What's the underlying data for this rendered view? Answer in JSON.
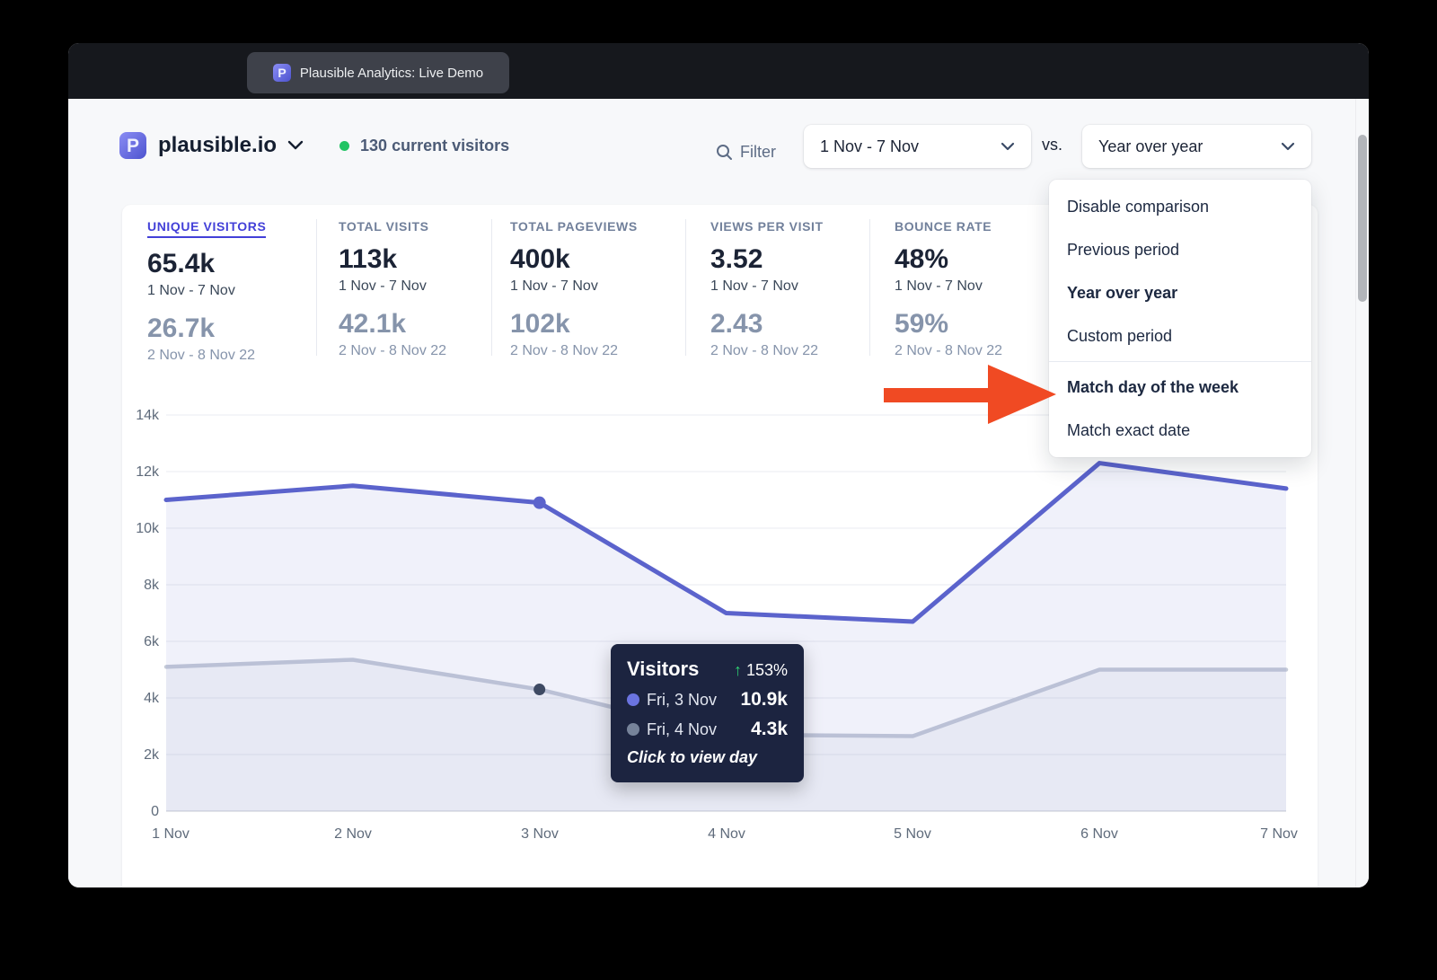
{
  "browser": {
    "tab_title": "Plausible Analytics: Live Demo"
  },
  "header": {
    "site_name": "plausible.io",
    "current_visitors": "130 current visitors",
    "filter_label": "Filter",
    "date_range_value": "1 Nov - 7 Nov",
    "vs_label": "vs.",
    "comparison_value": "Year over year"
  },
  "comparison_menu": {
    "items": [
      {
        "label": "Disable comparison",
        "bold": false
      },
      {
        "label": "Previous period",
        "bold": false
      },
      {
        "label": "Year over year",
        "bold": true
      },
      {
        "label": "Custom period",
        "bold": false
      },
      {
        "label": "Match day of the week",
        "bold": true
      },
      {
        "label": "Match exact date",
        "bold": false
      }
    ]
  },
  "stats": [
    {
      "label": "UNIQUE VISITORS",
      "value": "65.4k",
      "period": "1 Nov - 7 Nov",
      "comparison_value": "26.7k",
      "comparison_period": "2 Nov - 8 Nov 22"
    },
    {
      "label": "TOTAL VISITS",
      "value": "113k",
      "period": "1 Nov - 7 Nov",
      "comparison_value": "42.1k",
      "comparison_period": "2 Nov - 8 Nov 22"
    },
    {
      "label": "TOTAL PAGEVIEWS",
      "value": "400k",
      "period": "1 Nov - 7 Nov",
      "comparison_value": "102k",
      "comparison_period": "2 Nov - 8 Nov 22"
    },
    {
      "label": "VIEWS PER VISIT",
      "value": "3.52",
      "period": "1 Nov - 7 Nov",
      "comparison_value": "2.43",
      "comparison_period": "2 Nov - 8 Nov 22"
    },
    {
      "label": "BOUNCE RATE",
      "value": "48%",
      "period": "1 Nov - 7 Nov",
      "comparison_value": "59%",
      "comparison_period": "2 Nov - 8 Nov 22"
    }
  ],
  "tooltip": {
    "title": "Visitors",
    "change_arrow": "↑",
    "change": "153%",
    "rows": [
      {
        "label": "Fri, 3 Nov",
        "value": "10.9k",
        "color": "#6b74e0"
      },
      {
        "label": "Fri, 4 Nov",
        "value": "4.3k",
        "color": "#76839a"
      }
    ],
    "footer": "Click to view day"
  },
  "chart_data": {
    "type": "line",
    "x": [
      "1 Nov",
      "2 Nov",
      "3 Nov",
      "4 Nov",
      "5 Nov",
      "6 Nov",
      "7 Nov"
    ],
    "series": [
      {
        "name": "Visitors 1 Nov - 7 Nov",
        "color": "#5b63cc",
        "fill": "rgba(91,99,204,0.09)",
        "dot_color": "#5b63cc",
        "values": [
          11000,
          11500,
          10900,
          7000,
          6700,
          12300,
          11400
        ]
      },
      {
        "name": "Visitors 2 Nov - 8 Nov 22 (year over year)",
        "color": "#c5cbd8",
        "fill": "rgba(165,175,195,0.10)",
        "dot_color": "#3e4a63",
        "values": [
          5100,
          5350,
          4300,
          2700,
          2650,
          5000,
          5000
        ]
      }
    ],
    "ylim": [
      0,
      14000
    ],
    "yticks": [
      "0",
      "2k",
      "4k",
      "6k",
      "8k",
      "10k",
      "12k",
      "14k"
    ],
    "grid": true,
    "legend": false,
    "highlight_index": 2
  },
  "colors": {
    "accent_indigo": "#4340d8",
    "line_primary": "#5b63cc",
    "line_comparison": "#c5cbd8",
    "arrow_red": "#f04a23",
    "online_green": "#21c463",
    "tooltip_bg": "#1c2440"
  }
}
